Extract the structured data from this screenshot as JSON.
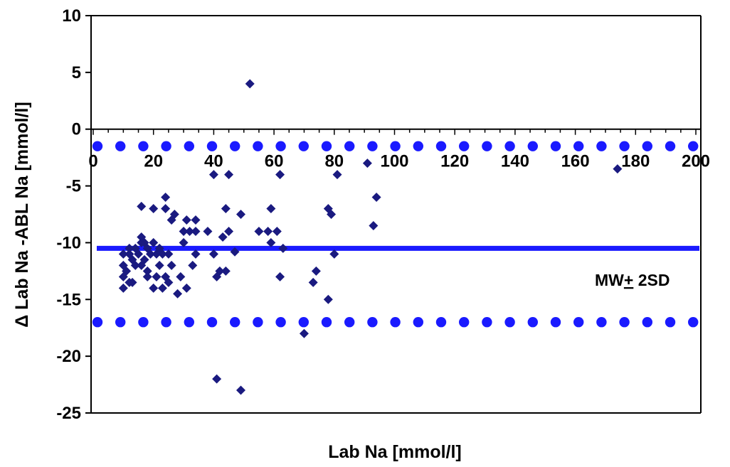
{
  "chart_data": {
    "type": "scatter",
    "title": "",
    "xlabel": "Lab Na [mmol/l]",
    "ylabel": "Δ Lab Na -ABL Na [mmol/l]",
    "xlim": [
      0,
      200
    ],
    "ylim": [
      -25,
      10
    ],
    "x_ticks": [
      "0",
      "20",
      "40",
      "60",
      "80",
      "100",
      "120",
      "140",
      "160",
      "180",
      "200"
    ],
    "y_ticks": [
      "10",
      "5",
      "0",
      "-5",
      "-10",
      "-15",
      "-20",
      "-25"
    ],
    "grid": false,
    "legend": "none",
    "colors": {
      "points": "#1a1a80",
      "lines": "#1a1aff"
    },
    "annotation": {
      "text_main": "MW",
      "text_pm": "+",
      "text_rest": " 2SD"
    },
    "mean_line": {
      "y": -10.5
    },
    "sd_lines": [
      {
        "y": -1.5
      },
      {
        "y": -17
      }
    ],
    "points": [
      [
        52,
        4
      ],
      [
        91,
        -3
      ],
      [
        174,
        -3.5
      ],
      [
        40,
        -4
      ],
      [
        45,
        -4
      ],
      [
        62,
        -4
      ],
      [
        81,
        -4
      ],
      [
        24,
        -6
      ],
      [
        94,
        -6
      ],
      [
        16,
        -6.8
      ],
      [
        27,
        -7.5
      ],
      [
        20,
        -7
      ],
      [
        24,
        -7
      ],
      [
        59,
        -7
      ],
      [
        78,
        -7
      ],
      [
        44,
        -7
      ],
      [
        26,
        -8
      ],
      [
        31,
        -8
      ],
      [
        34,
        -8
      ],
      [
        49,
        -7.5
      ],
      [
        79,
        -7.5
      ],
      [
        30,
        -9
      ],
      [
        32,
        -9
      ],
      [
        34,
        -9
      ],
      [
        38,
        -9
      ],
      [
        45,
        -9
      ],
      [
        55,
        -9
      ],
      [
        58,
        -9
      ],
      [
        61,
        -9
      ],
      [
        16,
        -9.5
      ],
      [
        43,
        -9.5
      ],
      [
        93,
        -8.5
      ],
      [
        12,
        -10.5
      ],
      [
        14,
        -10.5
      ],
      [
        16,
        -10
      ],
      [
        17,
        -10
      ],
      [
        18,
        -10.5
      ],
      [
        20,
        -10
      ],
      [
        22,
        -10.5
      ],
      [
        30,
        -10
      ],
      [
        59,
        -10
      ],
      [
        63,
        -10.5
      ],
      [
        10,
        -11
      ],
      [
        12,
        -11
      ],
      [
        13,
        -11.5
      ],
      [
        15,
        -11
      ],
      [
        17,
        -11.5
      ],
      [
        19,
        -11
      ],
      [
        21,
        -11
      ],
      [
        23,
        -11
      ],
      [
        25,
        -11
      ],
      [
        34,
        -11
      ],
      [
        40,
        -11
      ],
      [
        47,
        -10.8
      ],
      [
        80,
        -11
      ],
      [
        10,
        -12
      ],
      [
        11,
        -12.5
      ],
      [
        14,
        -12
      ],
      [
        16,
        -12
      ],
      [
        18,
        -12.5
      ],
      [
        22,
        -12
      ],
      [
        26,
        -12
      ],
      [
        33,
        -12
      ],
      [
        42,
        -12.5
      ],
      [
        44,
        -12.5
      ],
      [
        10,
        -13
      ],
      [
        18,
        -13
      ],
      [
        21,
        -13
      ],
      [
        24,
        -13
      ],
      [
        29,
        -13
      ],
      [
        41,
        -13
      ],
      [
        62,
        -13
      ],
      [
        74,
        -12.5
      ],
      [
        12,
        -13.5
      ],
      [
        20,
        -14
      ],
      [
        23,
        -14
      ],
      [
        25,
        -13.5
      ],
      [
        28,
        -14.5
      ],
      [
        31,
        -14
      ],
      [
        73,
        -13.5
      ],
      [
        10,
        -14
      ],
      [
        13,
        -13.5
      ],
      [
        78,
        -15
      ],
      [
        70,
        -18
      ],
      [
        41,
        -22
      ],
      [
        49,
        -23
      ]
    ]
  }
}
